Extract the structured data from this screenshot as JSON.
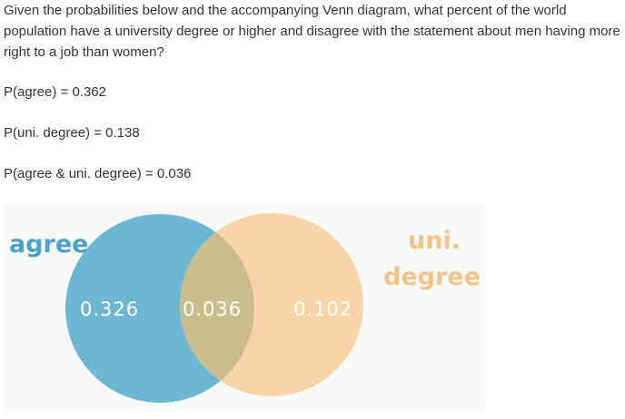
{
  "question": "Given the probabilities below and the accompanying Venn diagram, what percent of the world population have a university degree or higher and disagree with the statement about men having more right to a job than women?",
  "probabilities": [
    "P(agree) = 0.362",
    "P(uni. degree) = 0.138",
    "P(agree & uni. degree) = 0.036"
  ],
  "venn": {
    "left_label": "agree",
    "right_label_line1": "uni.",
    "right_label_line2": "degree",
    "left_only": "0.326",
    "overlap": "0.036",
    "right_only": "0.102",
    "colors": {
      "left": "#6cb7d1",
      "right": "#f8d5a8",
      "overlap": "#c9bc8e",
      "left_label": "#4aa3c6",
      "right_label": "#f4c387"
    }
  }
}
